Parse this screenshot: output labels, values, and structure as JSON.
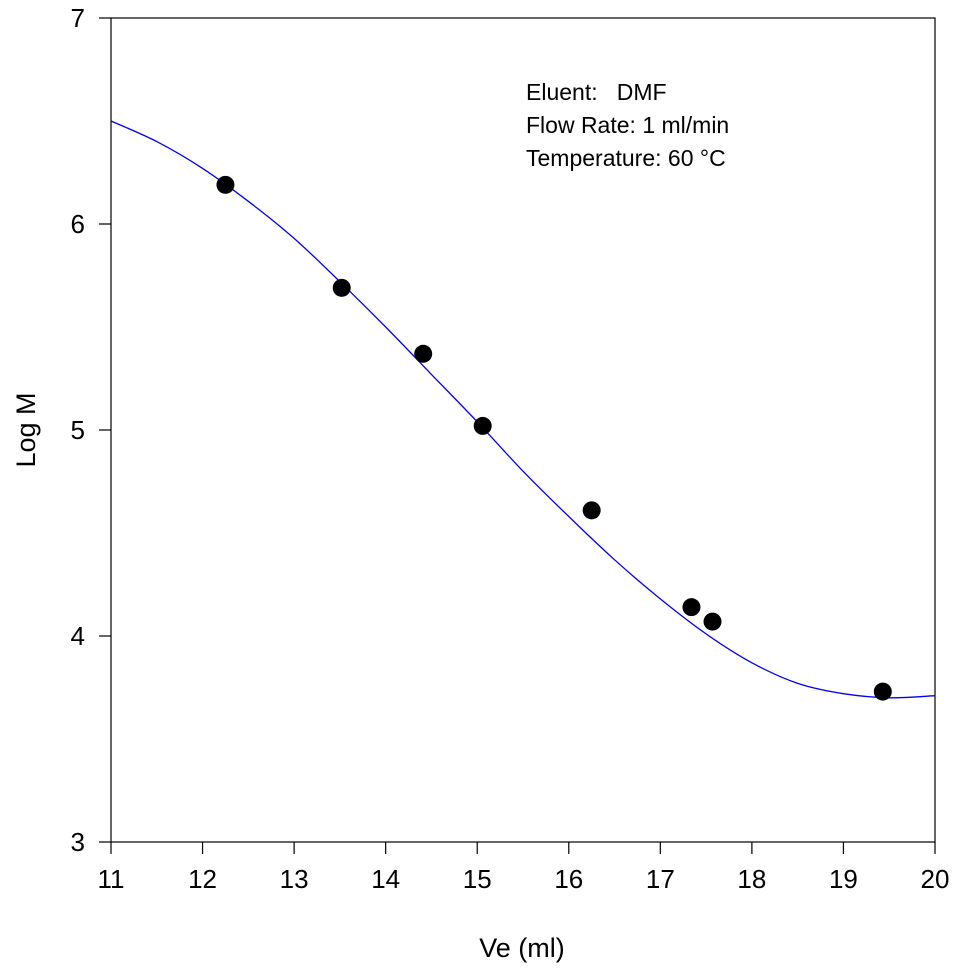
{
  "chart_data": {
    "type": "scatter",
    "title": "",
    "xlabel": "Ve (ml)",
    "ylabel": "Log M",
    "xlim": [
      11,
      20
    ],
    "ylim": [
      3,
      7
    ],
    "x_ticks": [
      "11",
      "12",
      "13",
      "14",
      "15",
      "16",
      "17",
      "18",
      "19",
      "20"
    ],
    "y_ticks": [
      "3",
      "4",
      "5",
      "6",
      "7"
    ],
    "grid": false,
    "legend": "none",
    "annotations": [
      "Eluent:   DMF",
      "Flow Rate: 1 ml/min",
      "Temperature: 60 °C"
    ],
    "colors": {
      "points": "#000000",
      "fit": "#0000ff",
      "axes": "#000000"
    },
    "series": [
      {
        "type": "scatter",
        "x": [
          12.25,
          13.52,
          14.41,
          15.06,
          16.25,
          17.34,
          17.57,
          19.43
        ],
        "y": [
          6.19,
          5.69,
          5.37,
          5.02,
          4.61,
          4.14,
          4.07,
          3.73
        ]
      },
      {
        "type": "line",
        "x": [
          11.0,
          11.5,
          12.0,
          12.5,
          13.0,
          13.5,
          14.0,
          14.5,
          15.0,
          15.5,
          16.0,
          16.5,
          17.0,
          17.5,
          18.0,
          18.5,
          19.0,
          19.5,
          20.0
        ],
        "y": [
          6.5,
          6.4,
          6.27,
          6.11,
          5.93,
          5.72,
          5.5,
          5.27,
          5.04,
          4.8,
          4.58,
          4.37,
          4.18,
          4.01,
          3.87,
          3.77,
          3.72,
          3.7,
          3.71
        ]
      }
    ]
  }
}
